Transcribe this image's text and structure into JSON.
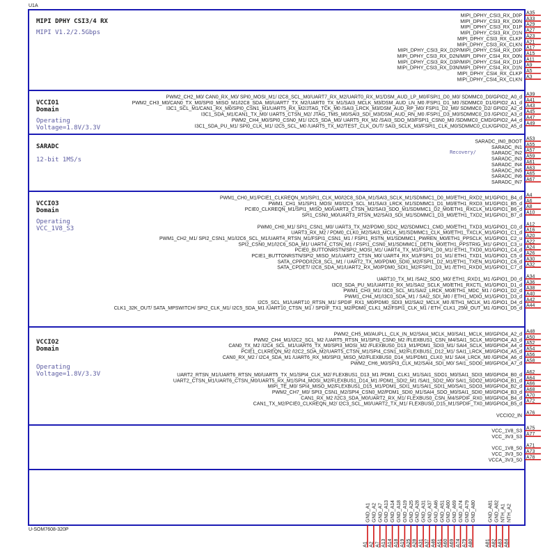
{
  "unit_label": "U1A",
  "part_label": "U-SOM7608-320P",
  "colors": {
    "border": "#1a1ab4",
    "text": "#1a1a1a",
    "label": "#5a5aa0",
    "pin": "#d01010"
  },
  "sections": [
    {
      "id": "mipi",
      "title": "MIPI DPHY CSI3/4 RX",
      "subtitle": "MIPI V1.2/2.5Gbps",
      "groups": [
        {
          "first": 0,
          "pins": [
            {
              "name": "MIPI_DPHY_CSI3_RX_D0P",
              "num": "A35"
            },
            {
              "name": "MIPI_DPHY_CSI3_RX_D0N",
              "num": "A33"
            },
            {
              "name": "MIPI_DPHY_CSI3_RX_D1P",
              "num": "A29"
            },
            {
              "name": "MIPI_DPHY_CSI3_RX_D1N",
              "num": "A27"
            },
            {
              "name": "MIPI_DPHY_CSI3_RX_CLKP",
              "num": "A23"
            },
            {
              "name": "MIPI_DPHY_CSI3_RX_CLKN",
              "num": "A21"
            },
            {
              "name": "MIPI_DPHY_CSI3_RX_D2P/MIPI_DPHY_CSI4_RX_D0P",
              "num": "A17"
            },
            {
              "name": "MIPI_DPHY_CSI3_RX_D2N/MIPI_DPHY_CSI4_RX_D0N",
              "num": "A15"
            },
            {
              "name": "MIPI_DPHY_CSI3_RX_D3P/MIPI_DPHY_CSI4_RX_D1P",
              "num": "A11"
            },
            {
              "name": "MIPI_DPHY_CSI3_RX_D3N/MIPI_DPHY_CSI4_RX_D1N",
              "num": "A9"
            },
            {
              "name": "MIPI_DPHY_CSI4_RX_CLKP",
              "num": "A5"
            },
            {
              "name": "MIPI_DPHY_CSI4_RX_CLKN",
              "num": "A3"
            }
          ]
        }
      ]
    },
    {
      "id": "vccio1",
      "title": "VCCIO1",
      "title2": "Domain",
      "note1": "Operating",
      "note2": "Voltage=1.8V/3.3V",
      "groups": [
        {
          "first": 0,
          "pins": [
            {
              "name": "PWM2_CH2_M0/ CAN0_RX_M0/ SPI0_MOSI_M1/ I2C8_SCL_M0/UART7_RX_M2/UART0_RX_M1/DSM_AUD_LP_M0/FSPI1_D0_M0/ SDMMC0_D0/GPIO2_A0_d",
              "num": "A39"
            },
            {
              "name": "PWM2_CH3_M0/CAN0_TX_M0/SPI0_MISO_M1/I2C8_SDA_M0/UART7_TX_M2/UART0_TX_M1/SAI3_MCLK_M3/DSM_AUD_LN_M0 /FSPI1_D1_M0 /SDMMC0_D1/GPIO2_A1_d",
              "num": "A41"
            },
            {
              "name": "I3C1_SCL_M1/CAN1_RX_M0/SPI0_CSN1_M1/UART5_RX_M2/JTAG_TCK_M0 /SAI3_LRCK_M3/DSM_AUD_RP_M0/ FSPI1_D2_M0/ SDMMC0_D2/ GPIO2_A2_d",
              "num": "A43"
            },
            {
              "name": "I3C1_SDA_M1/CAN1_TX_M0/ UART5_CTSN_M2/ JTAG_TMS_M0/SAI3_SDI_M3/DSM_AUD_RN_M0 /FSPI1_D3_M0/SDMMC0_D3 /GPIO2_A3_d",
              "num": "A45"
            },
            {
              "name": "PWM2_CH4_M0/SPI0_CSN0_M1/ I2C5_SDA_M0/ UART5_RX_M2 /SAI3_SDO_M3/FSPI1_CSN0_M0 /SDMMC0_CMD/GPIO2_A4_d",
              "num": "A47"
            },
            {
              "name": "I3C1_SDA_PU_M1/ SPI0_CLK_M1/ I2C5_SCL_M0 /UART5_TX_M2/TEST_CLK_OUT/ SAI3_SCLK_M3/FSPI1_CLK_M0/SDMMC0_CLK/GPIO2_A5_d",
              "num": "A49"
            }
          ]
        }
      ]
    },
    {
      "id": "saradc",
      "title": "SARADC",
      "subtitle": "12-bit 1MS/s",
      "pin_note": "Recovery/",
      "groups": [
        {
          "first": 0,
          "pins": [
            {
              "name": "SARADC_IN0_BOOT",
              "num": "A53"
            },
            {
              "name": "SARADC_IN1",
              "num": "A55"
            },
            {
              "name": "SARADC_IN2",
              "num": "A57"
            },
            {
              "name": "SARADC_IN3",
              "num": "A59"
            },
            {
              "name": "SARADC_IN4",
              "num": "A61"
            },
            {
              "name": "SARADC_IN5",
              "num": "A63"
            },
            {
              "name": "SARADC_IN6",
              "num": "A65"
            },
            {
              "name": "SARADC_IN7",
              "num": "A67"
            }
          ]
        }
      ]
    },
    {
      "id": "vccio3",
      "title": "VCCIO3",
      "title2": "Domain",
      "note1": "Operating",
      "note2": "VCC_1V8_S3",
      "groups": [
        {
          "first": 0,
          "pins": [
            {
              "name": "PWM1_CH0_M1/PCIE1_CLKREQN_M1/SPI1_CLK_M0/I2C8_SDA_M1/SAI3_SCLK_M1/SDMMC1_D0_M0/ETH1_RXD2_M1/GPIO1_B4_d",
              "num": "A4"
            },
            {
              "name": "PWM1_CH1_M1/SPI1_MOSI_M0/I2C9_SCL_M1/SAI3_LRCK_M1/SDMMC1_D1_M0/ETH1_RXD3_M1/GPIO1_B5_d",
              "num": "A6"
            },
            {
              "name": "PCIE0_CLKREQN_M1/SPI1_MISO_M0/UART3_CTSN_M2/SAI3_SDO_M1/SDMMC1_D2_M0/ETH1_RXCLK_M1/GPIO1_B6_d",
              "num": "A8"
            },
            {
              "name": "SPI1_CSN0_M0/UART3_RTSN_M2/SAI3_SDI_M1/SDMMC1_D3_M0/ETH1_TXD2_M1/GPIO1_B7_d",
              "num": "A10"
            }
          ]
        },
        {
          "first": 5,
          "pins": [
            {
              "name": "PWM0_CH0_M1/ SPI1_CSN1_M0/ UART3_TX_M2/PDM0_SDI2_M2/SDMMC1_CMD_M0/ETH1_TXD3_M1/GPIO1_C0_d",
              "num": "A12"
            },
            {
              "name": "UART3_RX_M2 / PDM0_CLK0_M2/SAI3_MCLK_M1/SDMMC1_CLK_M0/ETH1_TXCLK_M1/GPIO1_C1_d",
              "num": "A16"
            },
            {
              "name": "PWM1_CH2_M1/ SPI2_CSN1_M1/I2C6_SCL_M1/UART4_RTSN_M1/FSPI1_CSN1_M1 / FSPI1_RSTN_M1/SDMMC1_PWREN_M0/ETH1_PPSCLK_M1/GPIO1_C2_u",
              "num": "A20"
            },
            {
              "name": "SPI2_CSN0_M1/I2C6_SDA_M1/ UART4_CTSN_M1 / FSPI1_CSN0_M1/SDMMC1_DETN_M0/ETH1_PPSTRIG_M1/ GPIO1_C3_u",
              "num": "A22"
            },
            {
              "name": "PCIE0_BUTTONRSTN/SPI2_MOSI_M1/ UART4_TX_M1/FSPI1_D0_M1/ ETH1_TXD0_M1/GPIO1_C4_d",
              "num": "A24"
            },
            {
              "name": "PCIE1_BUTTONRSTN/SPI2_MISO_M1/UART2_CTSN_M0/ UART4_RX_M1/FSPI1_D1_M1/ ETH1_TXD1_M1/GPIO1_C5_d",
              "num": "A26"
            },
            {
              "name": "SATA_CPPOD/I2C8_SCL_M1 / UART2_TX_M0/PDM0_SDI0_M2/FSPI1_D2_M1/ETH1_TXEN_M1/GPIO1_C6_d",
              "num": "A30"
            },
            {
              "name": "SATA_CPDET/ I2C8_SDA_M1/UART2_RX_M0/PDM0_SDI1_M2/FSPI1_D3_M1 /ETH1_RXD0_M1/GPIO1_C7_d",
              "num": "A32"
            }
          ]
        },
        {
          "first": 14,
          "pins": [
            {
              "name": "UART10_TX_M1 /SAI2_SDO_M0/ ETH1_RXD1_M1 /GPIO1_D0_d",
              "num": "A34"
            },
            {
              "name": "I3C0_SDA_PU_M1/UART10_RX_M1/SAI2_SCLK_M0/ETH1_RXCTL_M1/GPIO1_D1_d",
              "num": "A36"
            },
            {
              "name": "PWM1_CH3_M1/ I3C0_SCL_M1/SAI2_LRCK_M0/ETH1_MDC_M1 / GPIO1_D2_d",
              "num": "A38"
            },
            {
              "name": "PWM1_CH4_M1/I3C0_SDA_M1 / SAI2_SDI_M0 / ETH1_MDIO_M1/GPIO1_D3_d",
              "num": "A40"
            },
            {
              "name": "I2C5_SCL_M1/UART10_RTSN_M1/ SPDIF_RX1_M0/PDM0_SDI3_M2/SAI2_MCLK_M0 /ETH1_MCLK_M1 /GPIO1_D4_d",
              "num": "A42"
            },
            {
              "name": "CLK1_32K_OUT/ SATA_MPSWITCH/ SPI2_CLK_M1/ I2C5_SDA_M1 /UART10_CTSN_M1 / SPDIF_TX1_M2/PDM0_CLK1_M2/FSPI1_CLK_M1 / ETH_CLK1_25M_OUT_M1 /GPIO1_D5_d",
              "num": "A44"
            }
          ]
        }
      ]
    },
    {
      "id": "vccio2",
      "title": "VCCIO2",
      "title2": "Domain",
      "note1": "Operating",
      "note2": "Voltage=1.8V/3.3V",
      "groups": [
        {
          "first": 0,
          "pins": [
            {
              "name": "PWM2_CH5_M0/AUPLL_CLK_IN_M2/SAI4_MCLK_M0/SAI1_MCLK_M0/GPIO4_A2_d",
              "num": "A48"
            },
            {
              "name": "PWM2_CH4_M1/I2C2_SCL_M2 /UART5_RTSN_M1/SPI3_CSN0_M2 /FLEXBUS1_CSN_M4/SAI1_SCLK_M0/GPIO4_A3_d",
              "num": "A50"
            },
            {
              "name": "CAN0_TX_M2 /I2C4_SCL_M1/UART6_TX_M0/SPI3_MOSI_M2 /FLEXBUS0_D13_M1/PDM1_SDI3_M1/ SAI4_SCLK_M0/GPIO4_A4_d",
              "num": "A52"
            },
            {
              "name": "PCIE1_CLKREQN_M2 /I2C2_SDA_M2/UART5_CTSN_M1/SPI4_CSN1_M2/FLEXBUS1_D12_M1/ SAI1_LRCK_M0/GPIO4_A5_d",
              "num": "A54"
            },
            {
              "name": "CAN0_RX_M2 / I2C4_SDA_M1 /UART6_RX_M0/SPI3_MISO_M2/FLEXBUS0_D14_M1/PDM1_CLK0_M1/ SAI4_LRCK_M0 /GPIO4_A6_d",
              "num": "A56"
            },
            {
              "name": "PWM2_CH6_M0/SPI3_CLK_M2/SAI4_SDI_M0/ SAI1_SDO0_M0/GPIO4_A7_d",
              "num": "A58"
            }
          ]
        },
        {
          "first": 7,
          "pins": [
            {
              "name": "UART2_RTSN_M1/UART6_RTSN_M0/UART5_TX_M1/SPI4_CLK_M2/ FLEXBUS1_D13_M1 /PDM1_CLK1_M1/SAI1_SDO1_M0/SAI1_SDI3_M0/GPIO4_B0_d",
              "num": "A62"
            },
            {
              "name": "UART2_CTSN_M1/UART6_CTSN_M0/UART5_RX_M1/SPI4_MOSI_M2/FLEXBUS1_D14_M1 /PDM1_SDI2_M1 /SAI1_SDI2_M0/ SAI1_SDO2_M0/GPIO4_B1_d",
              "num": "A64"
            },
            {
              "name": "MIPI_TE_M0/ SPI4_MISO_M2/FLEXBUS1_D15_M1/PDM1_SDI1_M1/SAI1_SDI1_M0/SAI1_SDO3_M0/GPIO4_B2_d",
              "num": "A66"
            },
            {
              "name": "PWM2_CH7_M0/ SPI3_CSN1_M2/SPI4_CSN0_M2/PDM1_SDI0_M1/SAI4_SDO_M0/SAI1_SDI0_M0/GPIO4_B3_d",
              "num": "A68"
            },
            {
              "name": "CAN1_RX_M2 /I2C3_SDA_M0/UART2_RX_M1/ FLEXBUS0_CSN_M4/SPDIF_RX0_M0/GPIO4_B4_d",
              "num": "A70"
            },
            {
              "name": "CAN1_TX_M2/PCIE0_CLKREQN_M2/ I2C3_SCL_M0/UART2_TX_M1/ FLEXBUS0_D15_M1/SPDIF_TX0_M0/GPIO4_B5_d",
              "num": "A72"
            }
          ]
        },
        {
          "first": 14,
          "pins": [
            {
              "name": "VCCIO2_IN",
              "num": "A76"
            }
          ]
        }
      ]
    },
    {
      "id": "power",
      "groups": [
        {
          "first": 0,
          "pins": [
            {
              "name": "VCC_1V8_S3",
              "num": "A75"
            },
            {
              "name": "VCC_3V3_S3",
              "num": "A77"
            }
          ]
        },
        {
          "first": 3,
          "pins": [
            {
              "name": "VCC_1V8_S0",
              "num": "A71"
            },
            {
              "name": "VCC_3V3_S0",
              "num": "A73"
            },
            {
              "name": "VCCA_3V3_S0",
              "num": "A78"
            }
          ]
        }
      ]
    }
  ],
  "bottom_pins": [
    {
      "name": "GND_A1",
      "num": "A1"
    },
    {
      "name": "GND_A2",
      "num": "A2"
    },
    {
      "name": "GND_A7",
      "num": "A7"
    },
    {
      "name": "GND_A13",
      "num": "A13"
    },
    {
      "name": "GND_A14",
      "num": "A14"
    },
    {
      "name": "GND_A18",
      "num": "A18"
    },
    {
      "name": "GND_A19",
      "num": "A19"
    },
    {
      "name": "GND_A25",
      "num": "A25"
    },
    {
      "name": "GND_A28",
      "num": "A28"
    },
    {
      "name": "GND_A31",
      "num": "A31"
    },
    {
      "name": "GND_A37",
      "num": "A37"
    },
    {
      "name": "GND_A46",
      "num": "A46"
    },
    {
      "name": "GND_A51",
      "num": "A51"
    },
    {
      "name": "GND_A60",
      "num": "A60"
    },
    {
      "name": "GND_A69",
      "num": "A69"
    },
    {
      "name": "GND_A74",
      "num": "A74"
    },
    {
      "name": "GND_A79",
      "num": "A79"
    },
    {
      "name": "GND_A80",
      "num": "A80"
    },
    {
      "name": "GND_A81",
      "num": "A81"
    },
    {
      "name": "GND_A82",
      "num": "A82"
    },
    {
      "name": "NTH_A1",
      "num": "A83"
    },
    {
      "name": "NTH_A2",
      "num": "A84"
    }
  ]
}
